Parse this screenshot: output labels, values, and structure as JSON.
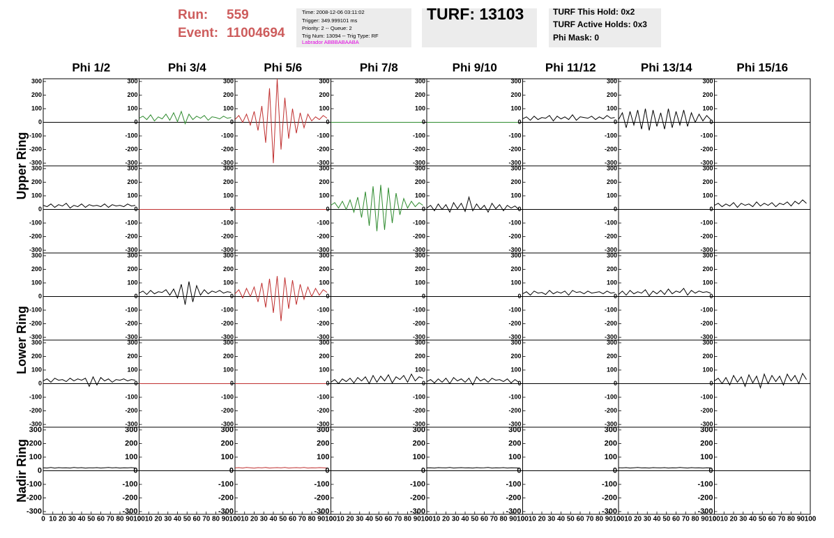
{
  "header": {
    "run_label": "Run:",
    "run": "559",
    "event_label": "Event:",
    "event": "11004694",
    "info": [
      "Time: 2008-12-06 03:11:02",
      "Trigger: 349.999101 ms",
      "Priority: 2 -- Queue: 2",
      "Trig Num: 13094 -- Trig Type: RF",
      "Labrador ABBBABAABA"
    ],
    "turf": "TURF: 13103",
    "holds": [
      "TURF This Hold: 0x2",
      "TURF Active Holds: 0x3",
      "Phi Mask: 0"
    ]
  },
  "columns": [
    "Phi 1/2",
    "Phi 3/4",
    "Phi 5/6",
    "Phi 7/8",
    "Phi 9/10",
    "Phi 11/12",
    "Phi 13/14",
    "Phi 15/16"
  ],
  "ring_labels": [
    "Upper Ring",
    "Lower Ring",
    "Nadir Ring"
  ],
  "ylim": [
    -320,
    320
  ],
  "yticks": [
    -300,
    -200,
    -100,
    0,
    100,
    200,
    300
  ],
  "xlim": [
    0,
    100
  ],
  "xticks": [
    0,
    10,
    20,
    30,
    40,
    50,
    60,
    70,
    80,
    90,
    100
  ],
  "x": [
    0,
    4,
    8,
    12,
    16,
    20,
    24,
    28,
    32,
    36,
    40,
    44,
    48,
    52,
    56,
    60,
    64,
    68,
    72,
    76,
    80,
    84,
    88,
    92,
    96
  ],
  "panels": [
    [
      null,
      {
        "color": "#2e8b2e",
        "values": [
          30,
          45,
          20,
          55,
          10,
          40,
          25,
          60,
          15,
          70,
          5,
          80,
          -10,
          60,
          20,
          45,
          30,
          50,
          15,
          40,
          35,
          25,
          45,
          30,
          35
        ]
      },
      {
        "color": "#c03030",
        "values": [
          20,
          50,
          0,
          60,
          -20,
          80,
          -60,
          120,
          -150,
          250,
          -300,
          320,
          -200,
          180,
          -120,
          100,
          -80,
          70,
          -40,
          60,
          10,
          40,
          20,
          50,
          30
        ]
      },
      {
        "color": "#2e8b2e",
        "values": [
          0,
          0,
          0,
          0,
          0,
          0,
          0,
          0,
          0,
          0,
          0,
          0,
          0,
          0,
          0,
          0,
          0,
          0,
          0,
          0,
          0,
          0,
          0,
          0,
          0
        ]
      },
      {
        "color": "#2e8b2e",
        "values": [
          0,
          0,
          0,
          0,
          0,
          0,
          0,
          0,
          0,
          0,
          0,
          0,
          0,
          0,
          0,
          0,
          0,
          0,
          0,
          0,
          0,
          0,
          0,
          0,
          0
        ]
      },
      {
        "color": "#000000",
        "values": [
          25,
          40,
          15,
          45,
          20,
          35,
          30,
          50,
          10,
          45,
          25,
          40,
          20,
          55,
          15,
          40,
          35,
          30,
          45,
          20,
          40,
          25,
          50,
          30,
          35
        ]
      },
      {
        "color": "#000000",
        "values": [
          20,
          70,
          -40,
          80,
          -20,
          90,
          -50,
          100,
          -60,
          90,
          -30,
          70,
          -50,
          100,
          -40,
          80,
          -20,
          90,
          -30,
          70,
          0,
          60,
          10,
          50,
          20
        ]
      },
      null
    ],
    [
      {
        "color": "#000000",
        "values": [
          30,
          20,
          40,
          15,
          35,
          25,
          45,
          10,
          30,
          20,
          40,
          15,
          35,
          25,
          30,
          20,
          40,
          15,
          35,
          25,
          30,
          20,
          40,
          25,
          30
        ]
      },
      {
        "color": "#c03030",
        "values": [
          0,
          0,
          0,
          0,
          0,
          0,
          0,
          0,
          0,
          0,
          0,
          0,
          0,
          0,
          0,
          0,
          0,
          0,
          0,
          0,
          0,
          0,
          0,
          0,
          0
        ]
      },
      {
        "color": "#c03030",
        "values": [
          0,
          0,
          0,
          0,
          0,
          0,
          0,
          0,
          0,
          0,
          0,
          0,
          0,
          0,
          0,
          0,
          0,
          0,
          0,
          0,
          0,
          0,
          0,
          0,
          0
        ]
      },
      {
        "color": "#2e8b2e",
        "values": [
          30,
          50,
          10,
          60,
          0,
          70,
          -20,
          90,
          -60,
          130,
          -120,
          170,
          -160,
          180,
          -150,
          160,
          -100,
          120,
          -40,
          80,
          10,
          60,
          20,
          50,
          30
        ]
      },
      {
        "color": "#000000",
        "values": [
          10,
          30,
          -10,
          40,
          0,
          35,
          -20,
          50,
          5,
          45,
          -15,
          90,
          -10,
          40,
          0,
          30,
          -20,
          45,
          5,
          35,
          -10,
          30,
          10,
          25,
          0
        ]
      },
      null,
      null,
      {
        "color": "#000000",
        "values": [
          30,
          45,
          20,
          40,
          25,
          50,
          15,
          45,
          30,
          40,
          20,
          55,
          25,
          45,
          30,
          50,
          20,
          45,
          35,
          55,
          25,
          60,
          40,
          70,
          45
        ]
      }
    ],
    [
      null,
      {
        "color": "#000000",
        "values": [
          25,
          40,
          15,
          45,
          20,
          35,
          30,
          50,
          10,
          55,
          -10,
          90,
          -60,
          110,
          -40,
          80,
          10,
          50,
          20,
          40,
          30,
          45,
          25,
          35,
          30
        ]
      },
      {
        "color": "#c03030",
        "values": [
          20,
          50,
          -10,
          60,
          0,
          70,
          -40,
          100,
          -80,
          130,
          -120,
          150,
          -180,
          140,
          -90,
          120,
          -60,
          90,
          -20,
          70,
          0,
          60,
          10,
          50,
          30
        ]
      },
      null,
      null,
      {
        "color": "#000000",
        "values": [
          20,
          35,
          10,
          40,
          25,
          30,
          15,
          45,
          20,
          35,
          25,
          40,
          10,
          45,
          30,
          35,
          20,
          40,
          25,
          30,
          35,
          20,
          40,
          25,
          30
        ]
      },
      {
        "color": "#000000",
        "values": [
          15,
          40,
          10,
          45,
          20,
          35,
          25,
          50,
          5,
          40,
          20,
          45,
          15,
          55,
          20,
          40,
          30,
          60,
          10,
          45,
          25,
          40,
          30,
          35,
          25
        ]
      },
      null
    ],
    [
      {
        "color": "#000000",
        "values": [
          20,
          35,
          10,
          40,
          25,
          30,
          15,
          40,
          20,
          35,
          25,
          40,
          -20,
          50,
          -10,
          45,
          20,
          35,
          10,
          30,
          25,
          35,
          20,
          30,
          25
        ]
      },
      {
        "color": "#c03030",
        "values": [
          0,
          0,
          0,
          0,
          0,
          0,
          0,
          0,
          0,
          0,
          0,
          0,
          0,
          0,
          0,
          0,
          0,
          0,
          0,
          0,
          0,
          0,
          0,
          0,
          0
        ]
      },
      {
        "color": "#c03030",
        "values": [
          0,
          0,
          0,
          0,
          0,
          0,
          0,
          0,
          0,
          0,
          0,
          0,
          0,
          0,
          0,
          0,
          0,
          0,
          0,
          0,
          0,
          0,
          0,
          0,
          0
        ]
      },
      {
        "color": "#000000",
        "values": [
          10,
          30,
          0,
          35,
          15,
          40,
          5,
          45,
          20,
          50,
          0,
          60,
          10,
          55,
          20,
          65,
          5,
          50,
          30,
          60,
          10,
          70,
          20,
          50,
          40
        ]
      },
      {
        "color": "#000000",
        "values": [
          15,
          30,
          5,
          35,
          10,
          40,
          0,
          45,
          20,
          35,
          10,
          40,
          -10,
          50,
          20,
          35,
          10,
          40,
          25,
          30,
          15,
          35,
          5,
          30,
          10
        ]
      },
      null,
      null,
      {
        "color": "#000000",
        "values": [
          20,
          40,
          0,
          45,
          -10,
          60,
          10,
          50,
          -20,
          65,
          5,
          55,
          -30,
          70,
          0,
          60,
          15,
          55,
          -10,
          70,
          20,
          60,
          0,
          75,
          30
        ]
      }
    ],
    [
      {
        "color": "#000000",
        "values": [
          22,
          20,
          24,
          19,
          23,
          21,
          22,
          20,
          24,
          21,
          23,
          19,
          22,
          21,
          23,
          20,
          22,
          24,
          21,
          23,
          20,
          22,
          21,
          23,
          20
        ]
      },
      null,
      {
        "color": "#c03030",
        "values": [
          21,
          23,
          20,
          24,
          22,
          19,
          23,
          21,
          24,
          20,
          22,
          23,
          21,
          24,
          20,
          22,
          23,
          21,
          24,
          20,
          22,
          21,
          23,
          22,
          20
        ]
      },
      null,
      {
        "color": "#000000",
        "values": [
          21,
          22,
          20,
          23,
          22,
          21,
          24,
          20,
          22,
          23,
          21,
          22,
          20,
          23,
          21,
          22,
          24,
          20,
          22,
          21,
          23,
          20,
          22,
          21,
          20
        ]
      },
      null,
      {
        "color": "#000000",
        "values": [
          22,
          21,
          23,
          20,
          22,
          24,
          21,
          22,
          20,
          23,
          22,
          21,
          23,
          20,
          22,
          21,
          24,
          22,
          20,
          23,
          21,
          22,
          20,
          22,
          21
        ]
      },
      null
    ]
  ]
}
